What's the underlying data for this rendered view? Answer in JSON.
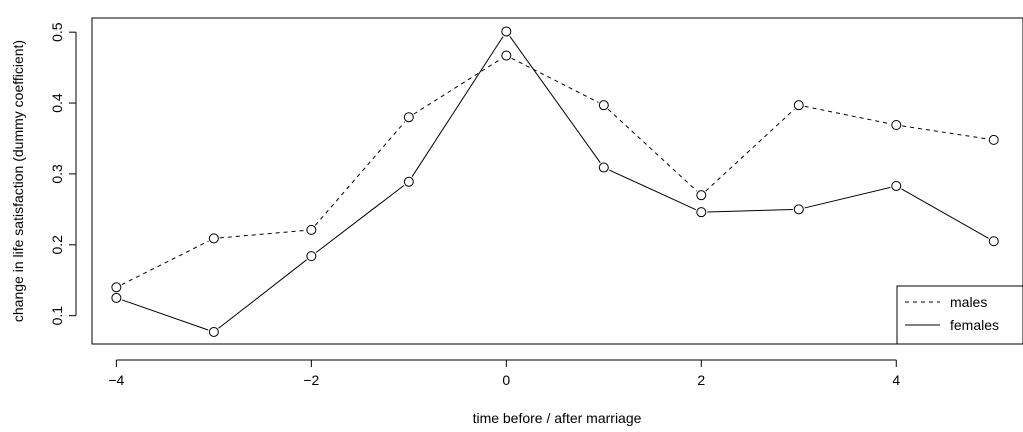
{
  "chart_data": {
    "type": "line",
    "title": "",
    "xlabel": "time before / after marriage",
    "ylabel": "change in life satisfaction (dummy coefficient)",
    "xlim": [
      -4.25,
      5.3
    ],
    "ylim": [
      0.06,
      0.52
    ],
    "x": [
      -4,
      -3,
      -2,
      -1,
      0,
      1,
      2,
      3,
      4,
      5
    ],
    "x_ticks": [
      -4,
      -2,
      0,
      2,
      4
    ],
    "x_tick_labels": [
      "−4",
      "−2",
      "0",
      "2",
      "4"
    ],
    "y_ticks": [
      0.1,
      0.2,
      0.3,
      0.4,
      0.5
    ],
    "y_tick_labels": [
      "0.1",
      "0.2",
      "0.3",
      "0.4",
      "0.5"
    ],
    "grid": false,
    "legend_position": "bottom-right",
    "series": [
      {
        "name": "males",
        "line_style": "dashed",
        "marker": "open-circle",
        "values": [
          0.14,
          0.209,
          0.221,
          0.38,
          0.467,
          0.397,
          0.27,
          0.397,
          0.369,
          0.348
        ]
      },
      {
        "name": "females",
        "line_style": "solid",
        "marker": "open-circle",
        "values": [
          0.125,
          0.077,
          0.184,
          0.289,
          0.501,
          0.309,
          0.246,
          0.25,
          0.283,
          0.205
        ]
      }
    ]
  }
}
